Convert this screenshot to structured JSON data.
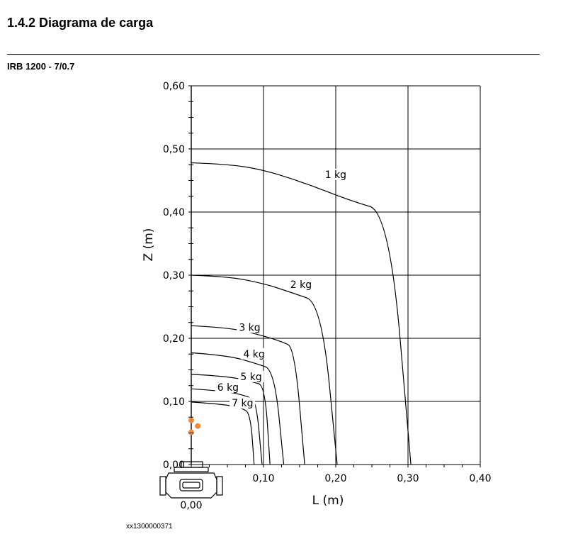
{
  "document": {
    "section_title": "1.4.2  Diagrama de carga",
    "subtitle": "IRB 1200 - 7/0.7",
    "figure_id": "xx1300000371"
  },
  "colors": {
    "grid": "#000000",
    "curve": "#000000",
    "marker": "#f08a3c",
    "robot": "#000000"
  },
  "chart_data": {
    "type": "line",
    "xlabel": "L (m)",
    "ylabel": "Z (m)",
    "xlim": [
      0,
      0.4
    ],
    "ylim": [
      0,
      0.6
    ],
    "x_ticks": [
      "0,00",
      "0,10",
      "0,20",
      "0,30",
      "0,40"
    ],
    "y_ticks": [
      "0,00",
      "0,10",
      "0,20",
      "0,30",
      "0,40",
      "0,50",
      "0,60"
    ],
    "x_tick_values": [
      0,
      0.1,
      0.2,
      0.3,
      0.4
    ],
    "y_tick_values": [
      0,
      0.1,
      0.2,
      0.3,
      0.4,
      0.5,
      0.6
    ],
    "grid": true,
    "series": [
      {
        "name": "1 kg",
        "points": [
          [
            0,
            0.478
          ],
          [
            0.05,
            0.476
          ],
          [
            0.1,
            0.467
          ],
          [
            0.16,
            0.445
          ],
          [
            0.22,
            0.418
          ],
          [
            0.274,
            0.4
          ],
          [
            0.304,
            0.0
          ]
        ]
      },
      {
        "name": "2 kg",
        "points": [
          [
            0,
            0.3
          ],
          [
            0.05,
            0.298
          ],
          [
            0.1,
            0.287
          ],
          [
            0.14,
            0.272
          ],
          [
            0.18,
            0.256
          ],
          [
            0.202,
            0.0
          ]
        ]
      },
      {
        "name": "3 kg",
        "points": [
          [
            0,
            0.22
          ],
          [
            0.05,
            0.217
          ],
          [
            0.09,
            0.207
          ],
          [
            0.125,
            0.195
          ],
          [
            0.143,
            0.185
          ],
          [
            0.157,
            0.0
          ]
        ]
      },
      {
        "name": "4 kg",
        "points": [
          [
            0,
            0.177
          ],
          [
            0.05,
            0.173
          ],
          [
            0.09,
            0.16
          ],
          [
            0.115,
            0.15
          ],
          [
            0.128,
            0.0
          ]
        ]
      },
      {
        "name": "5 kg",
        "points": [
          [
            0,
            0.143
          ],
          [
            0.05,
            0.14
          ],
          [
            0.085,
            0.131
          ],
          [
            0.102,
            0.125
          ],
          [
            0.109,
            0.0
          ]
        ]
      },
      {
        "name": "6 kg",
        "points": [
          [
            0,
            0.12
          ],
          [
            0.05,
            0.116
          ],
          [
            0.078,
            0.108
          ],
          [
            0.09,
            0.101
          ],
          [
            0.098,
            0.0
          ]
        ]
      },
      {
        "name": "7 kg",
        "points": [
          [
            0,
            0.099
          ],
          [
            0.04,
            0.096
          ],
          [
            0.07,
            0.09
          ],
          [
            0.082,
            0.08
          ],
          [
            0.087,
            0.0
          ]
        ]
      }
    ],
    "markers": [
      [
        0.0,
        0.07
      ],
      [
        0.009,
        0.061
      ],
      [
        0.0,
        0.051
      ]
    ]
  }
}
